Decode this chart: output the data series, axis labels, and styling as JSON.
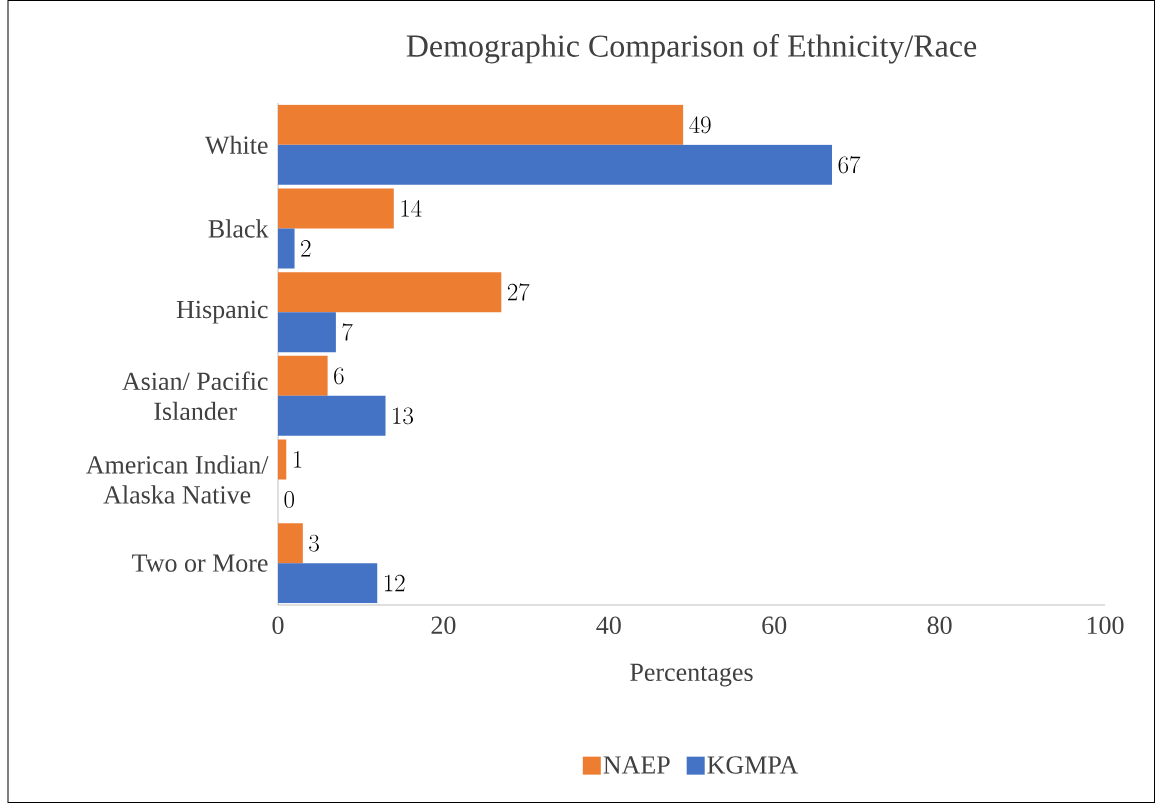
{
  "chart_data": {
    "type": "bar",
    "orientation": "horizontal",
    "title": "Demographic Comparison of Ethnicity/Race",
    "xlabel": "Percentages",
    "categories": [
      "White",
      "Black",
      "Hispanic",
      "Asian/ Pacific Islander",
      "American Indian/ Alaska Native",
      "Two or More"
    ],
    "series": [
      {
        "name": "NAEP",
        "color": "#ed7d31",
        "values": [
          49,
          14,
          27,
          6,
          1,
          3
        ]
      },
      {
        "name": "KGMPA",
        "color": "#4472c4",
        "values": [
          67,
          2,
          7,
          13,
          0,
          12
        ]
      }
    ],
    "xlim": [
      0,
      100
    ],
    "xticks": [
      0,
      20,
      40,
      60,
      80,
      100
    ],
    "data_labels": true,
    "legend": "bottom"
  }
}
